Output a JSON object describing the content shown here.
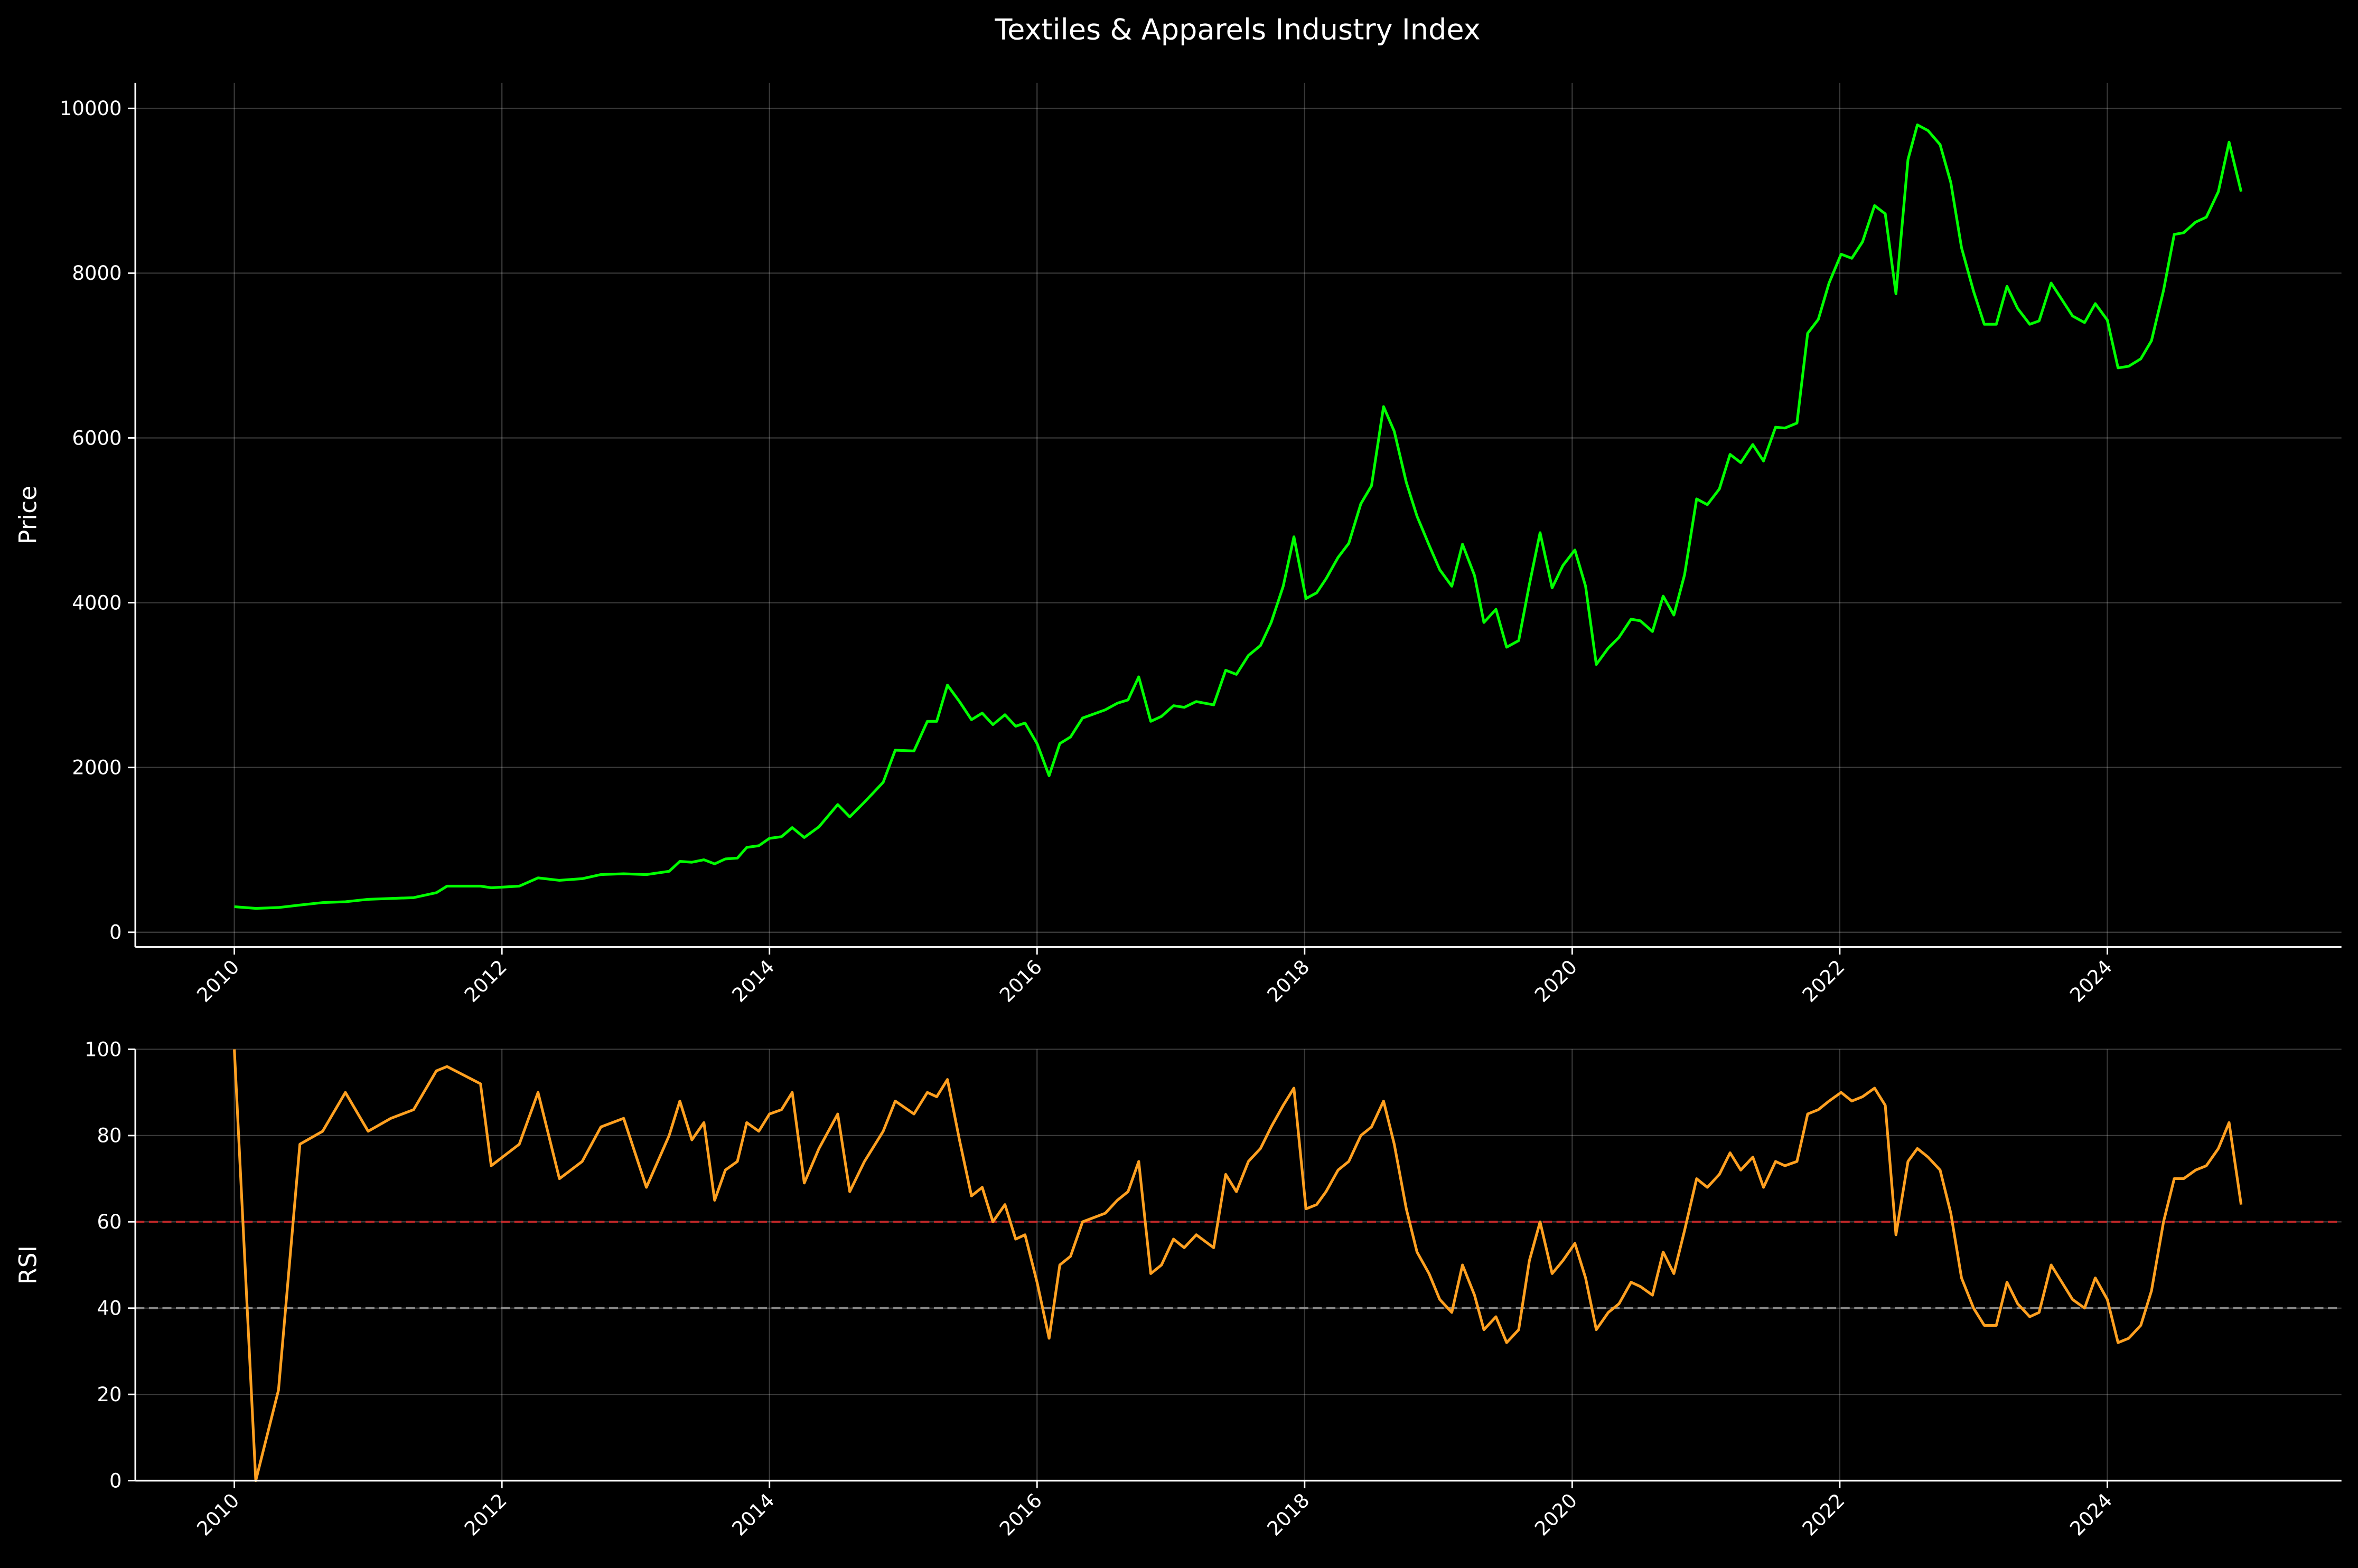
{
  "chart_data": [
    {
      "type": "line",
      "title": "Textiles & Apparels Industry Index",
      "ylabel": "Price",
      "color": "#00ff00",
      "x": [
        2010.0,
        2010.16,
        2010.33,
        2010.49,
        2010.66,
        2010.83,
        2011.0,
        2011.17,
        2011.34,
        2011.51,
        2011.59,
        2011.84,
        2011.92,
        2012.13,
        2012.27,
        2012.43,
        2012.6,
        2012.74,
        2012.91,
        2013.08,
        2013.25,
        2013.33,
        2013.42,
        2013.51,
        2013.59,
        2013.67,
        2013.76,
        2013.83,
        2013.92,
        2014.0,
        2014.09,
        2014.17,
        2014.26,
        2014.37,
        2014.51,
        2014.6,
        2014.71,
        2014.85,
        2014.94,
        2015.08,
        2015.18,
        2015.25,
        2015.33,
        2015.42,
        2015.51,
        2015.59,
        2015.67,
        2015.76,
        2015.84,
        2015.91,
        2016.0,
        2016.09,
        2016.17,
        2016.25,
        2016.34,
        2016.51,
        2016.6,
        2016.68,
        2016.76,
        2016.85,
        2016.93,
        2017.02,
        2017.1,
        2017.19,
        2017.32,
        2017.41,
        2017.49,
        2017.58,
        2017.67,
        2017.75,
        2017.84,
        2017.92,
        2018.01,
        2018.09,
        2018.16,
        2018.25,
        2018.33,
        2018.42,
        2018.5,
        2018.59,
        2018.67,
        2018.76,
        2018.84,
        2018.93,
        2019.01,
        2019.1,
        2019.18,
        2019.27,
        2019.34,
        2019.43,
        2019.51,
        2019.6,
        2019.68,
        2019.76,
        2019.85,
        2019.93,
        2020.02,
        2020.1,
        2020.18,
        2020.27,
        2020.35,
        2020.44,
        2020.51,
        2020.6,
        2020.68,
        2020.76,
        2020.84,
        2020.93,
        2021.01,
        2021.1,
        2021.18,
        2021.26,
        2021.35,
        2021.43,
        2021.52,
        2021.59,
        2021.68,
        2021.76,
        2021.84,
        2021.92,
        2022.01,
        2022.09,
        2022.17,
        2022.26,
        2022.34,
        2022.42,
        2022.51,
        2022.58,
        2022.66,
        2022.75,
        2022.83,
        2022.91,
        2023.0,
        2023.08,
        2023.17,
        2023.25,
        2023.33,
        2023.42,
        2023.49,
        2023.58,
        2023.66,
        2023.74,
        2023.83,
        2023.91,
        2024.0,
        2024.08,
        2024.16,
        2024.25,
        2024.33,
        2024.42,
        2024.5,
        2024.57,
        2024.66,
        2024.74,
        2024.83,
        2024.91,
        2025.0
      ],
      "values": [
        310,
        290,
        300,
        330,
        360,
        370,
        400,
        410,
        420,
        480,
        560,
        560,
        540,
        560,
        660,
        630,
        650,
        700,
        710,
        700,
        740,
        860,
        850,
        880,
        830,
        890,
        900,
        1030,
        1050,
        1140,
        1160,
        1270,
        1150,
        1280,
        1550,
        1400,
        1580,
        1820,
        2210,
        2200,
        2560,
        2560,
        3000,
        2800,
        2580,
        2660,
        2520,
        2640,
        2500,
        2540,
        2290,
        1900,
        2290,
        2370,
        2600,
        2700,
        2780,
        2820,
        3100,
        2560,
        2620,
        2750,
        2730,
        2800,
        2760,
        3180,
        3130,
        3360,
        3480,
        3760,
        4200,
        4800,
        4050,
        4120,
        4290,
        4550,
        4720,
        5200,
        5420,
        6380,
        6080,
        5460,
        5050,
        4700,
        4400,
        4200,
        4710,
        4330,
        3760,
        3920,
        3460,
        3540,
        4220,
        4850,
        4180,
        4450,
        4640,
        4200,
        3250,
        3450,
        3580,
        3800,
        3780,
        3650,
        4080,
        3850,
        4340,
        5260,
        5190,
        5380,
        5800,
        5700,
        5920,
        5720,
        6130,
        6120,
        6180,
        7270,
        7440,
        7880,
        8230,
        8180,
        8380,
        8820,
        8720,
        7750,
        9380,
        9800,
        9730,
        9560,
        9100,
        8310,
        7780,
        7380,
        7380,
        7840,
        7570,
        7380,
        7420,
        7880,
        7680,
        7480,
        7400,
        7630,
        7430,
        6850,
        6870,
        6960,
        7180,
        7790,
        8470,
        8490,
        8620,
        8680,
        8990,
        9590,
        8990
      ],
      "xlim": [
        2009.26,
        2025.75
      ],
      "xticks": [
        2010,
        2012,
        2014,
        2016,
        2018,
        2020,
        2022,
        2024
      ],
      "ylim": [
        -180,
        10310
      ],
      "yticks": [
        0,
        2000,
        4000,
        6000,
        8000,
        10000
      ],
      "grid": true
    },
    {
      "type": "line",
      "ylabel": "RSI",
      "color": "#ffa020",
      "x": [
        2010.0,
        2010.16,
        2010.33,
        2010.49,
        2010.66,
        2010.83,
        2011.0,
        2011.17,
        2011.34,
        2011.51,
        2011.59,
        2011.84,
        2011.92,
        2012.13,
        2012.27,
        2012.43,
        2012.6,
        2012.74,
        2012.91,
        2013.08,
        2013.25,
        2013.33,
        2013.42,
        2013.51,
        2013.59,
        2013.67,
        2013.76,
        2013.83,
        2013.92,
        2014.0,
        2014.09,
        2014.17,
        2014.26,
        2014.37,
        2014.51,
        2014.6,
        2014.71,
        2014.85,
        2014.94,
        2015.08,
        2015.18,
        2015.25,
        2015.33,
        2015.42,
        2015.51,
        2015.59,
        2015.67,
        2015.76,
        2015.84,
        2015.91,
        2016.0,
        2016.09,
        2016.17,
        2016.25,
        2016.34,
        2016.51,
        2016.6,
        2016.68,
        2016.76,
        2016.85,
        2016.93,
        2017.02,
        2017.1,
        2017.19,
        2017.32,
        2017.41,
        2017.49,
        2017.58,
        2017.67,
        2017.75,
        2017.84,
        2017.92,
        2018.01,
        2018.09,
        2018.16,
        2018.25,
        2018.33,
        2018.42,
        2018.5,
        2018.59,
        2018.67,
        2018.76,
        2018.84,
        2018.93,
        2019.01,
        2019.1,
        2019.18,
        2019.27,
        2019.34,
        2019.43,
        2019.51,
        2019.6,
        2019.68,
        2019.76,
        2019.85,
        2019.93,
        2020.02,
        2020.1,
        2020.18,
        2020.27,
        2020.35,
        2020.44,
        2020.51,
        2020.6,
        2020.68,
        2020.76,
        2020.84,
        2020.93,
        2021.01,
        2021.1,
        2021.18,
        2021.26,
        2021.35,
        2021.43,
        2021.52,
        2021.59,
        2021.68,
        2021.76,
        2021.84,
        2021.92,
        2022.01,
        2022.09,
        2022.17,
        2022.26,
        2022.34,
        2022.42,
        2022.51,
        2022.58,
        2022.66,
        2022.75,
        2022.83,
        2022.91,
        2023.0,
        2023.08,
        2023.17,
        2023.25,
        2023.33,
        2023.42,
        2023.49,
        2023.58,
        2023.66,
        2023.74,
        2023.83,
        2023.91,
        2024.0,
        2024.08,
        2024.16,
        2024.25,
        2024.33,
        2024.42,
        2024.5,
        2024.57,
        2024.66,
        2024.74,
        2024.83,
        2024.91,
        2025.0
      ],
      "values": [
        100,
        0,
        21,
        78,
        81,
        90,
        81,
        84,
        86,
        95,
        96,
        92,
        73,
        78,
        90,
        70,
        74,
        82,
        84,
        68,
        80,
        88,
        79,
        83,
        65,
        72,
        74,
        83,
        81,
        85,
        86,
        90,
        69,
        77,
        85,
        67,
        74,
        81,
        88,
        85,
        90,
        89,
        93,
        79,
        66,
        68,
        60,
        64,
        56,
        57,
        46,
        33,
        50,
        52,
        60,
        62,
        65,
        67,
        74,
        48,
        50,
        56,
        54,
        57,
        54,
        71,
        67,
        74,
        77,
        82,
        87,
        91,
        63,
        64,
        67,
        72,
        74,
        80,
        82,
        88,
        78,
        63,
        53,
        48,
        42,
        39,
        50,
        43,
        35,
        38,
        32,
        35,
        51,
        60,
        48,
        51,
        55,
        47,
        35,
        39,
        41,
        46,
        45,
        43,
        53,
        48,
        58,
        70,
        68,
        71,
        76,
        72,
        75,
        68,
        74,
        73,
        74,
        85,
        86,
        88,
        90,
        88,
        89,
        91,
        87,
        57,
        74,
        77,
        75,
        72,
        62,
        47,
        40,
        36,
        36,
        46,
        41,
        38,
        39,
        50,
        46,
        42,
        40,
        47,
        42,
        32,
        33,
        36,
        44,
        60,
        70,
        70,
        72,
        73,
        77,
        83,
        64
      ],
      "hlines": [
        {
          "value": 60,
          "color": "#d62728"
        },
        {
          "value": 40,
          "color": "#999999"
        }
      ],
      "xlim": [
        2009.26,
        2025.75
      ],
      "xticks": [
        2010,
        2012,
        2014,
        2016,
        2018,
        2020,
        2022,
        2024
      ],
      "ylim": [
        0,
        100
      ],
      "yticks": [
        0,
        20,
        40,
        60,
        80,
        100
      ],
      "grid": true
    }
  ]
}
